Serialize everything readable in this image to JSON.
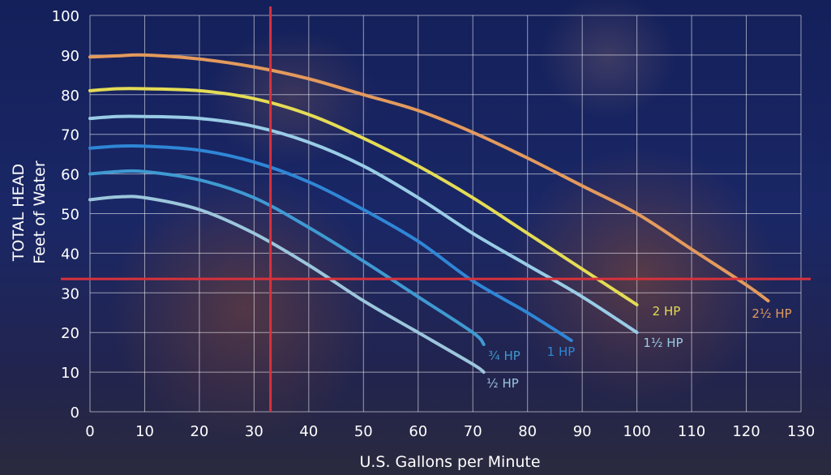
{
  "chart_data": {
    "type": "line",
    "xlabel": "U.S. Gallons per Minute",
    "ylabel_lines": [
      "TOTAL HEAD",
      "Feet of Water"
    ],
    "xlim": [
      0,
      130
    ],
    "ylim": [
      0,
      100
    ],
    "xticks": [
      "0",
      "10",
      "20",
      "30",
      "40",
      "50",
      "60",
      "70",
      "80",
      "90",
      "100",
      "110",
      "120",
      "130"
    ],
    "yticks": [
      "0",
      "10",
      "20",
      "30",
      "40",
      "50",
      "60",
      "70",
      "80",
      "90",
      "100"
    ],
    "grid": true,
    "reference_lines": {
      "vertical_x": 33,
      "horizontal_y": 33.5,
      "color": "#d8323c"
    },
    "series": [
      {
        "name": "½ HP",
        "color": "#9cc6dc",
        "points": [
          [
            0,
            53.5
          ],
          [
            5,
            54.2
          ],
          [
            10,
            54
          ],
          [
            20,
            51
          ],
          [
            30,
            45
          ],
          [
            40,
            37
          ],
          [
            50,
            28
          ],
          [
            60,
            20
          ],
          [
            70,
            12
          ],
          [
            72,
            10
          ]
        ]
      },
      {
        "name": "¾ HP",
        "color": "#3f9ad1",
        "points": [
          [
            0,
            60
          ],
          [
            5,
            60.6
          ],
          [
            10,
            60.6
          ],
          [
            20,
            58.5
          ],
          [
            30,
            54
          ],
          [
            40,
            46.5
          ],
          [
            50,
            38
          ],
          [
            60,
            29
          ],
          [
            70,
            20
          ],
          [
            72,
            17
          ]
        ]
      },
      {
        "name": "1 HP",
        "color": "#2f86d6",
        "points": [
          [
            0,
            66.5
          ],
          [
            5,
            67
          ],
          [
            10,
            67
          ],
          [
            20,
            66
          ],
          [
            30,
            63
          ],
          [
            40,
            58
          ],
          [
            50,
            51
          ],
          [
            60,
            43
          ],
          [
            70,
            33
          ],
          [
            80,
            25
          ],
          [
            88,
            18
          ]
        ]
      },
      {
        "name": "1½ HP",
        "color": "#99cce6",
        "points": [
          [
            0,
            74
          ],
          [
            5,
            74.5
          ],
          [
            10,
            74.5
          ],
          [
            20,
            74
          ],
          [
            30,
            72
          ],
          [
            40,
            68
          ],
          [
            50,
            62
          ],
          [
            60,
            54
          ],
          [
            70,
            45
          ],
          [
            80,
            37
          ],
          [
            90,
            29
          ],
          [
            100,
            20
          ]
        ]
      },
      {
        "name": "2 HP",
        "color": "#e4dc55",
        "points": [
          [
            0,
            81
          ],
          [
            5,
            81.5
          ],
          [
            10,
            81.5
          ],
          [
            20,
            81
          ],
          [
            30,
            79
          ],
          [
            40,
            75
          ],
          [
            50,
            69
          ],
          [
            60,
            62
          ],
          [
            70,
            54
          ],
          [
            80,
            45
          ],
          [
            90,
            36
          ],
          [
            100,
            27
          ]
        ]
      },
      {
        "name": "2½ HP",
        "color": "#e39a5d",
        "points": [
          [
            0,
            89.5
          ],
          [
            5,
            89.8
          ],
          [
            10,
            90
          ],
          [
            20,
            89
          ],
          [
            30,
            87
          ],
          [
            40,
            84
          ],
          [
            50,
            80
          ],
          [
            60,
            76
          ],
          [
            70,
            70.5
          ],
          [
            80,
            64
          ],
          [
            90,
            57
          ],
          [
            100,
            50
          ],
          [
            110,
            41
          ],
          [
            120,
            32
          ],
          [
            124,
            28
          ]
        ]
      }
    ]
  }
}
